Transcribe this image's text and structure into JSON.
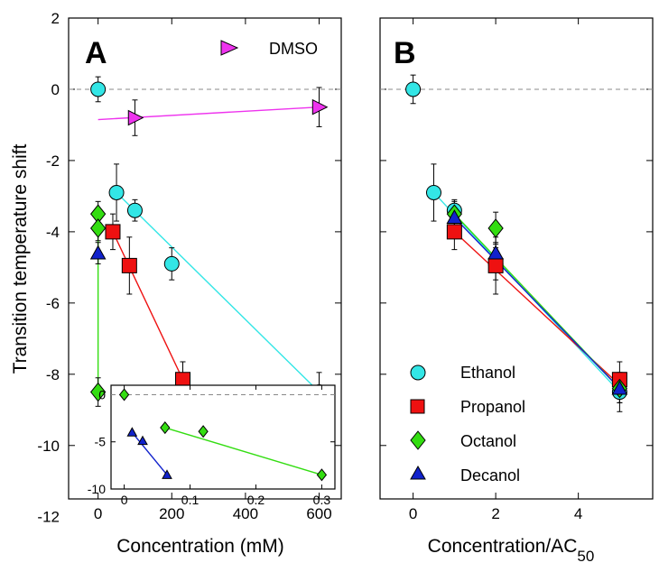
{
  "colors": {
    "Ethanol": "#33e6e6",
    "Propanol": "#ee1111",
    "Octanol": "#33dd11",
    "Decanol": "#1122cc",
    "DMSO": "#ee33ee",
    "line_Ethanol": "#33e6e6",
    "line_Propanol": "#ee1111",
    "line_Octanol": "#33dd11",
    "line_Decanol": "#1122cc",
    "line_DMSO": "#ee33ee"
  },
  "chart_data": [
    {
      "type": "scatter",
      "panel": "A",
      "xlabel": "Concentration (mM)",
      "ylabel": "Transition temperature shift",
      "xlim": [
        -80,
        660
      ],
      "ylim": [
        -11.5,
        2
      ],
      "xticks": [
        0,
        200,
        400,
        600
      ],
      "yticks": [
        2,
        0,
        -2,
        -4,
        -6,
        -8,
        -10,
        -12
      ],
      "zero_line": true,
      "series": [
        {
          "name": "Ethanol",
          "marker": "circle",
          "x": [
            0,
            50,
            100,
            200,
            600
          ],
          "y": [
            0,
            -2.9,
            -3.4,
            -4.9,
            -8.5
          ],
          "err": [
            0.35,
            0.8,
            0.3,
            0.45,
            0.55
          ],
          "fit": [
            [
              50,
              -2.9
            ],
            [
              600,
              -8.5
            ]
          ]
        },
        {
          "name": "Propanol",
          "marker": "square",
          "x": [
            40,
            85,
            230
          ],
          "y": [
            -4.0,
            -4.95,
            -8.15
          ],
          "err": [
            0.5,
            0.8,
            0.5
          ],
          "fit": [
            [
              40,
              -4.0
            ],
            [
              230,
              -8.15
            ]
          ]
        },
        {
          "name": "Octanol",
          "marker": "diamond",
          "x": [
            0,
            0,
            0
          ],
          "y": [
            -3.5,
            -3.9,
            -8.5
          ],
          "err": [
            0.35,
            0.35,
            0.4
          ],
          "fit": [
            [
              0,
              -3.5
            ],
            [
              0,
              -8.5
            ]
          ]
        },
        {
          "name": "Decanol",
          "marker": "triangle",
          "x": [
            0
          ],
          "y": [
            -4.6
          ],
          "err": [
            0.3
          ],
          "fit": []
        },
        {
          "name": "DMSO",
          "marker": "triangle-right",
          "x": [
            100,
            600
          ],
          "y": [
            -0.8,
            -0.5
          ],
          "err": [
            0.5,
            0.55
          ],
          "fit": [
            [
              0,
              -0.85
            ],
            [
              600,
              -0.5
            ]
          ]
        }
      ],
      "legend": [
        {
          "name": "DMSO",
          "position": "top-right"
        }
      ]
    },
    {
      "type": "scatter",
      "panel": "A-inset",
      "xlim": [
        -0.02,
        0.32
      ],
      "ylim": [
        -10,
        1
      ],
      "xticks": [
        0,
        0.1,
        0.2,
        0.3
      ],
      "yticks": [
        0,
        -5,
        -10
      ],
      "zero_line": true,
      "series": [
        {
          "name": "Octanol",
          "marker": "diamond",
          "x": [
            0,
            0.062,
            0.12,
            0.3
          ],
          "y": [
            0,
            -3.5,
            -3.9,
            -8.5
          ],
          "fit": [
            [
              0.062,
              -3.5
            ],
            [
              0.3,
              -8.5
            ]
          ]
        },
        {
          "name": "Decanol",
          "marker": "triangle",
          "x": [
            0.012,
            0.028,
            0.065
          ],
          "y": [
            -4.0,
            -4.9,
            -8.5
          ],
          "fit": [
            [
              0.012,
              -4.0
            ],
            [
              0.065,
              -8.5
            ]
          ]
        }
      ]
    },
    {
      "type": "scatter",
      "panel": "B",
      "xlabel": "Concentration/AC",
      "xlabel_sub": "50",
      "xlim": [
        -0.8,
        5.8
      ],
      "ylim": [
        -11.5,
        2
      ],
      "xticks": [
        0,
        2,
        4
      ],
      "yticks": [
        2,
        0,
        -2,
        -4,
        -6,
        -8,
        -10,
        -12
      ],
      "zero_line": true,
      "series": [
        {
          "name": "Ethanol",
          "marker": "circle",
          "x": [
            0,
            0.5,
            1,
            2,
            5
          ],
          "y": [
            0,
            -2.9,
            -3.4,
            -4.9,
            -8.5
          ],
          "err": [
            0.4,
            0.8,
            0.3,
            0.45,
            0.55
          ],
          "fit": [
            [
              0.5,
              -2.9
            ],
            [
              5,
              -8.5
            ]
          ]
        },
        {
          "name": "Propanol",
          "marker": "square",
          "x": [
            1,
            2,
            5
          ],
          "y": [
            -4.0,
            -4.95,
            -8.15
          ],
          "err": [
            0.5,
            0.8,
            0.5
          ],
          "fit": [
            [
              1,
              -4.0
            ],
            [
              5,
              -8.3
            ]
          ]
        },
        {
          "name": "Octanol",
          "marker": "diamond",
          "x": [
            1,
            2,
            5
          ],
          "y": [
            -3.5,
            -3.9,
            -8.4
          ],
          "err": [
            0.35,
            0.45,
            0.4
          ],
          "fit": [
            [
              1,
              -3.5
            ],
            [
              5,
              -8.4
            ]
          ]
        },
        {
          "name": "Decanol",
          "marker": "triangle",
          "x": [
            1,
            2,
            5
          ],
          "y": [
            -3.6,
            -4.6,
            -8.4
          ],
          "err": [
            0.3,
            0.3,
            0.4
          ],
          "fit": [
            [
              1,
              -3.6
            ],
            [
              5,
              -8.4
            ]
          ]
        }
      ],
      "legend": [
        {
          "name": "Ethanol"
        },
        {
          "name": "Propanol"
        },
        {
          "name": "Octanol"
        },
        {
          "name": "Decanol"
        }
      ]
    }
  ],
  "labels": {
    "panel_a": "A",
    "panel_b": "B",
    "dmso": "DMSO",
    "ethanol": "Ethanol",
    "propanol": "Propanol",
    "octanol": "Octanol",
    "decanol": "Decanol",
    "ylabel": "Transition temperature shift",
    "xlabel_a": "Concentration (mM)",
    "xlabel_b_main": "Concentration/AC",
    "xlabel_b_sub": "50"
  }
}
